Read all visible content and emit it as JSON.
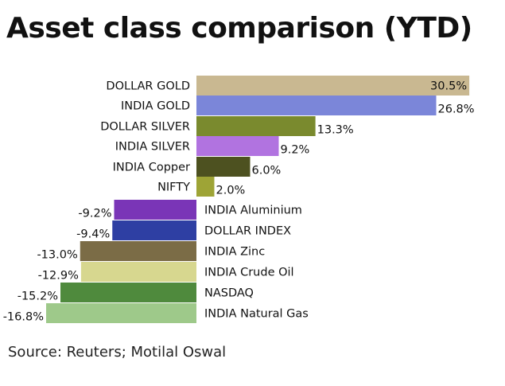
{
  "title": "Asset class comparison (YTD)",
  "source": "Source: Reuters; Motilal Oswal",
  "chart_data": {
    "type": "bar",
    "orientation": "horizontal",
    "title": "Asset class comparison (YTD)",
    "xlabel": "",
    "ylabel": "",
    "unit": "%",
    "grid": false,
    "legend": "none",
    "categories": [
      "DOLLAR GOLD",
      "INDIA GOLD",
      "DOLLAR SILVER",
      "INDIA SILVER",
      "INDIA Copper",
      "NIFTY",
      "INDIA Aluminium",
      "DOLLAR INDEX",
      "INDIA Zinc",
      "INDIA Crude Oil",
      "NASDAQ",
      "INDIA Natural Gas"
    ],
    "values": [
      30.5,
      26.8,
      13.3,
      9.2,
      6.0,
      2.0,
      -9.2,
      -9.4,
      -13.0,
      -12.9,
      -15.2,
      -16.8
    ],
    "value_labels": [
      "30.5%",
      "26.8%",
      "13.3%",
      "9.2%",
      "6.0%",
      "2.0%",
      "-9.2%",
      "-9.4%",
      "-13.0%",
      "-12.9%",
      "-15.2%",
      "-16.8%"
    ],
    "colors": [
      "#c9b891",
      "#7b86d9",
      "#7a8a2e",
      "#b173e0",
      "#4d5120",
      "#9ea436",
      "#7a35b7",
      "#2e3fa3",
      "#7b6c46",
      "#d7d78f",
      "#4f8a3d",
      "#9ec98a"
    ]
  }
}
